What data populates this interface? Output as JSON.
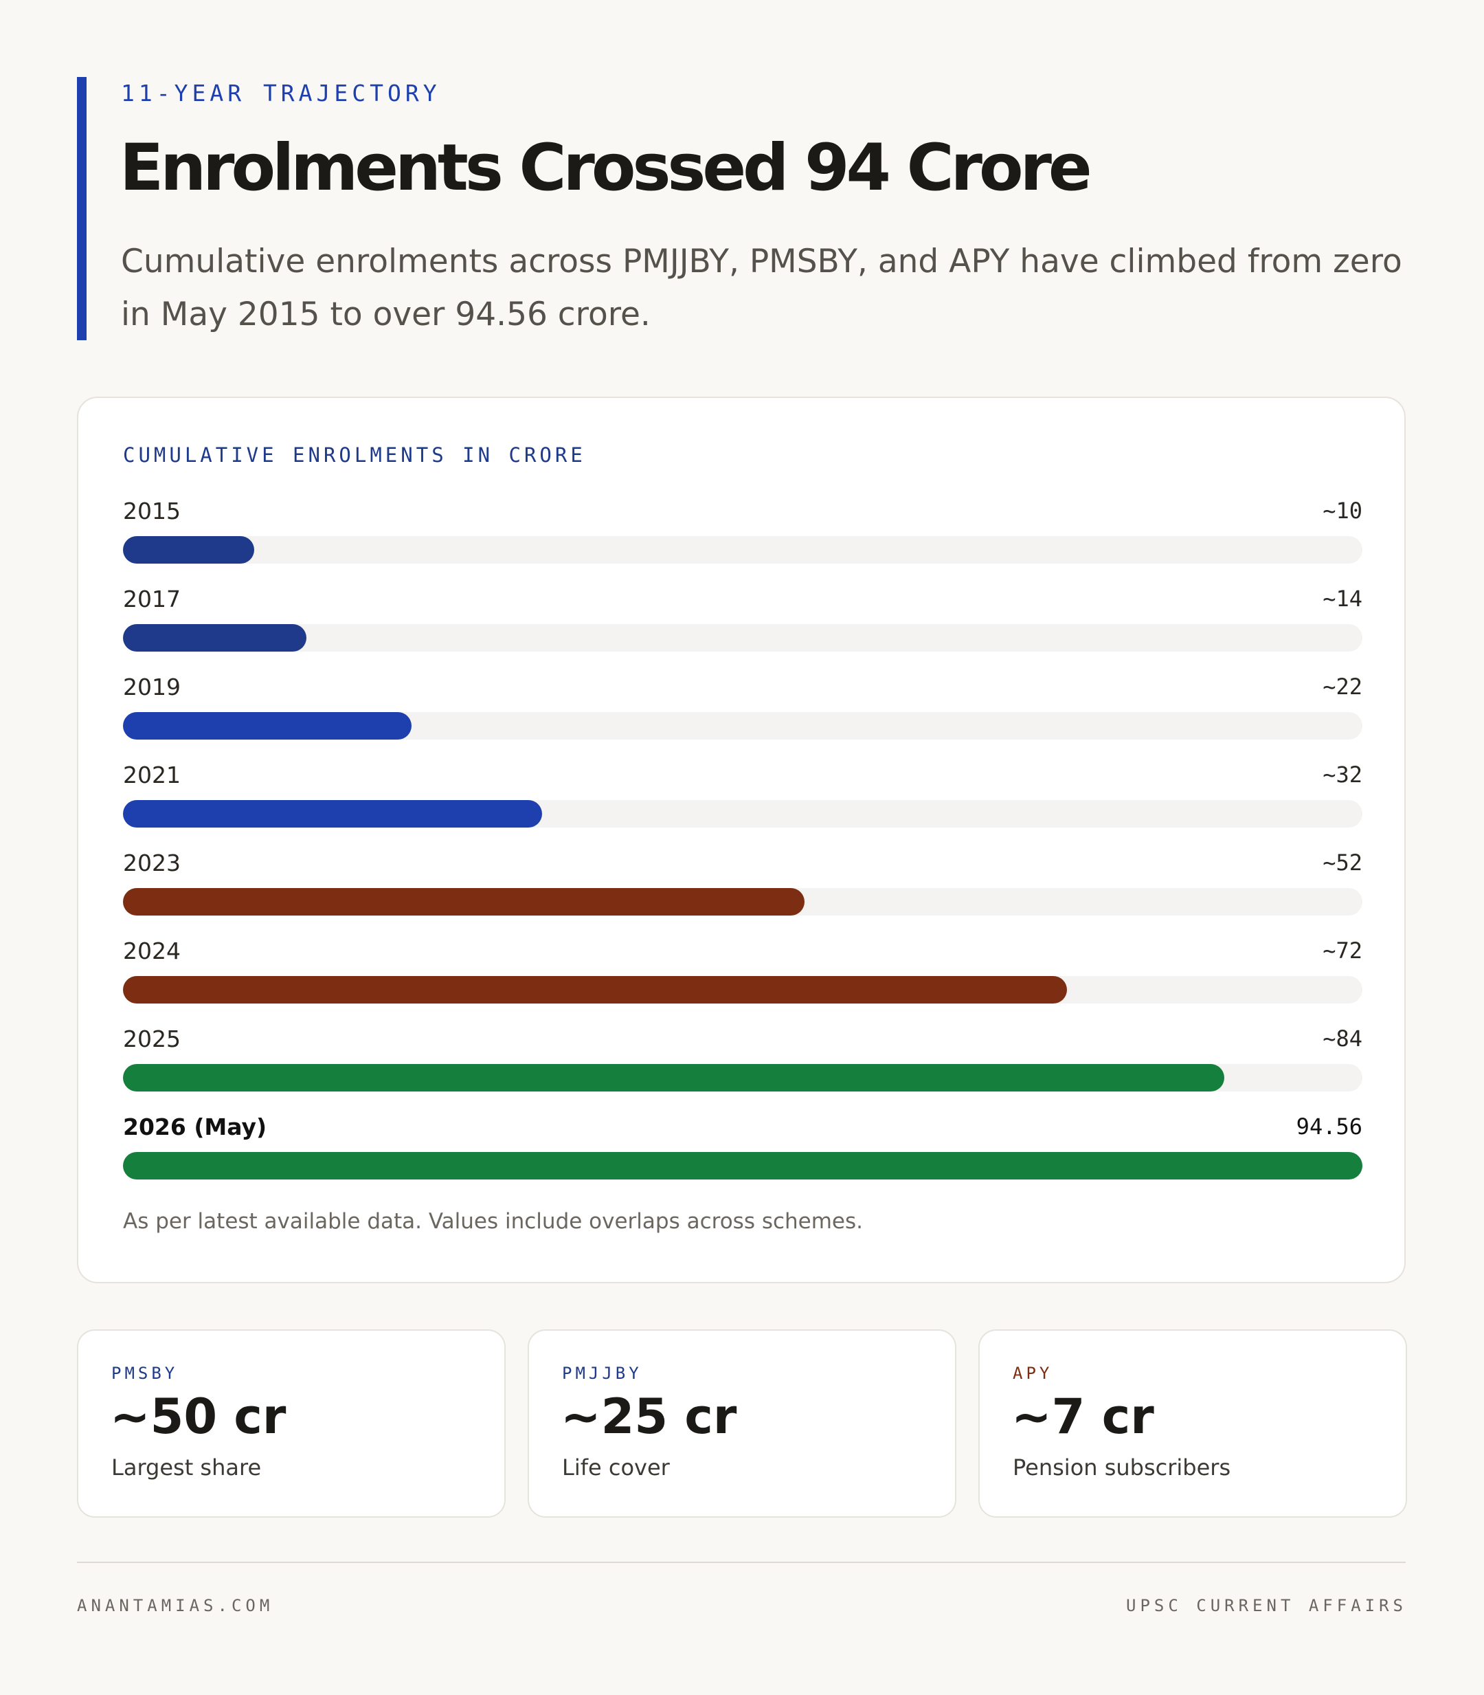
{
  "header": {
    "eyebrow": "11-YEAR TRAJECTORY",
    "title": "Enrolments Crossed 94 Crore",
    "subtitle": "Cumulative enrolments across PMJJBY, PMSBY, and APY have climbed from zero in May 2015 to over 94.56 crore."
  },
  "chart_data": {
    "type": "bar",
    "orientation": "horizontal",
    "title": "CUMULATIVE ENROLMENTS IN CRORE",
    "categories": [
      "2015",
      "2017",
      "2019",
      "2021",
      "2023",
      "2024",
      "2025",
      "2026 (May)"
    ],
    "values": [
      10,
      14,
      22,
      32,
      52,
      72,
      84,
      94.56
    ],
    "value_labels": [
      "~10",
      "~14",
      "~22",
      "~32",
      "~52",
      "~72",
      "~84",
      "94.56"
    ],
    "bar_colors": [
      "#1f3a8a",
      "#1f3a8a",
      "#1e40af",
      "#1e40af",
      "#7c2d12",
      "#7c2d12",
      "#15803d",
      "#15803d"
    ],
    "highlight_index": 7,
    "xlim": [
      0,
      94.56
    ],
    "note": "As per latest available data. Values include overlaps across schemes."
  },
  "stats": [
    {
      "label": "PMSBY",
      "value": "~50 cr",
      "caption": "Largest share",
      "color": "#1e3a8a"
    },
    {
      "label": "PMJJBY",
      "value": "~25 cr",
      "caption": "Life cover",
      "color": "#1e3a8a"
    },
    {
      "label": "APY",
      "value": "~7 cr",
      "caption": "Pension subscribers",
      "color": "#7c2d12"
    }
  ],
  "footer": {
    "left": "ANANTAMIAS.COM",
    "right": "UPSC CURRENT AFFAIRS"
  },
  "colors": {
    "accent": "#1e40af",
    "background": "#f9f8f4",
    "track": "#f4f3f1"
  }
}
